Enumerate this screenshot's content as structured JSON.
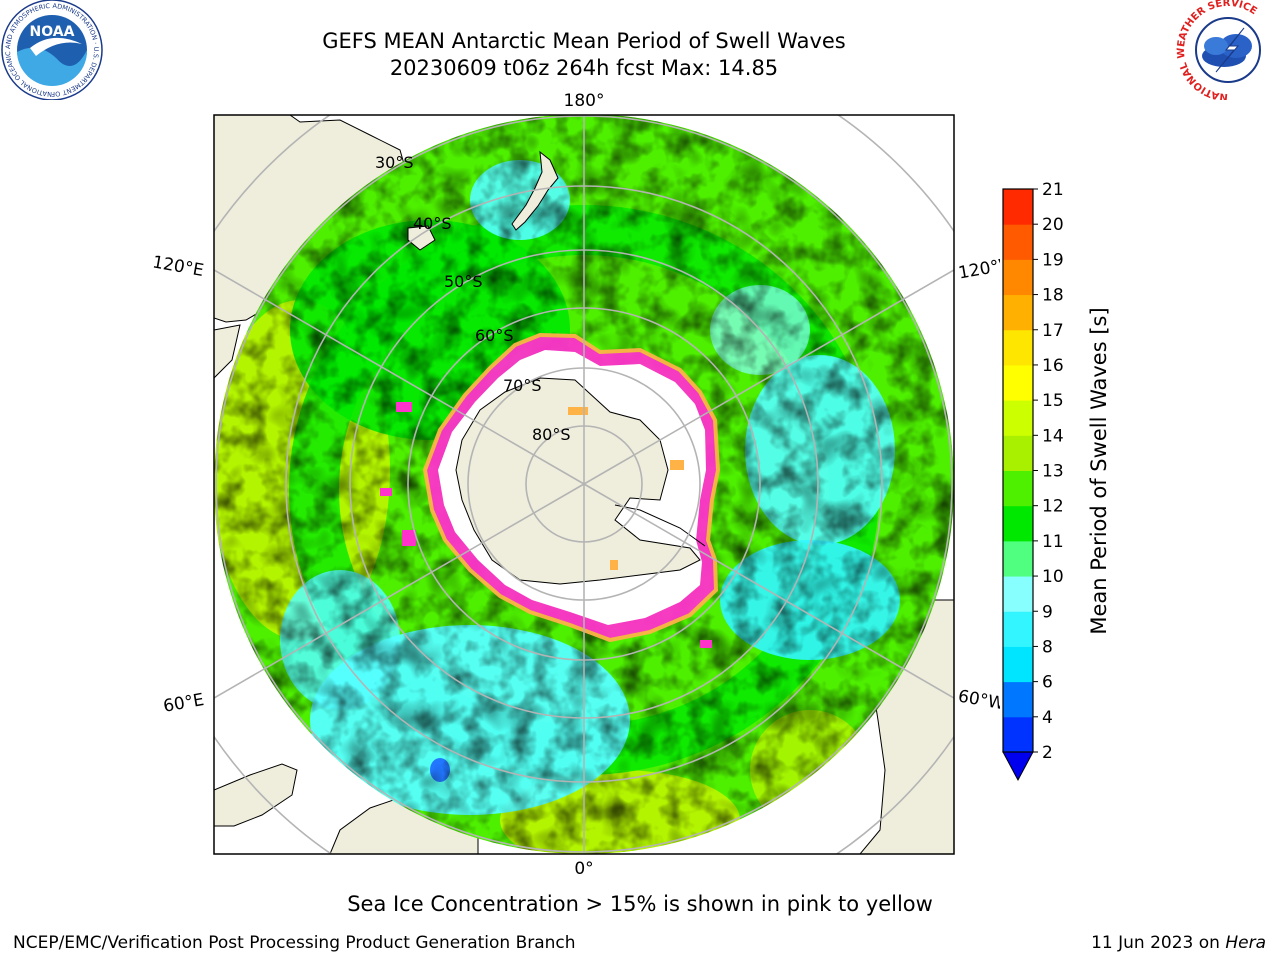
{
  "header": {
    "title_line1": "GEFS MEAN Antarctic Mean Period of Swell Waves",
    "title_line2": "20230609 t06z 264h fcst   Max: 14.85"
  },
  "logos": {
    "noaa_text": "NOAA",
    "noaa_ring_text": "NATIONAL OCEANIC AND ATMOSPHERIC ADMINISTRATION · U.S. DEPARTMENT OF COMMERCE",
    "nws_ring_text": "NATIONAL WEATHER SERVICE"
  },
  "map": {
    "projection": "south-polar-stereographic",
    "longitude_labels": {
      "top": "180°",
      "bottom": "0°",
      "upper_left": "120°E",
      "lower_left": "60°E",
      "upper_right": "120°W",
      "lower_right": "60°W"
    },
    "latitude_labels": [
      "30°S",
      "40°S",
      "50°S",
      "60°S",
      "70°S",
      "80°S"
    ]
  },
  "colorbar": {
    "label": "Mean Period of Swell Waves [s]",
    "ticks": [
      "2",
      "4",
      "6",
      "8",
      "9",
      "10",
      "11",
      "12",
      "13",
      "14",
      "15",
      "16",
      "17",
      "18",
      "19",
      "20",
      "21"
    ],
    "colors": [
      "#0033ff",
      "#0077ff",
      "#00e5ff",
      "#33f5ff",
      "#88ffff",
      "#50ff80",
      "#00e800",
      "#4ef000",
      "#a8f000",
      "#ccff00",
      "#ffff00",
      "#ffe600",
      "#ffb000",
      "#ff8800",
      "#ff5a00",
      "#ff2a00"
    ],
    "extend_color": "#0000ee"
  },
  "colors": {
    "land": "#efeddc",
    "sea_ice_pink": "#ff33cc",
    "sea_ice_orange": "#ffb347",
    "grid": "#b4b4b4"
  },
  "subtitle": "Sea Ice Concentration > 15% is shown in pink to yellow",
  "footer": {
    "left": "NCEP/EMC/Verification Post Processing Product Generation Branch",
    "date": "11 Jun 2023 on ",
    "machine": "Hera"
  }
}
